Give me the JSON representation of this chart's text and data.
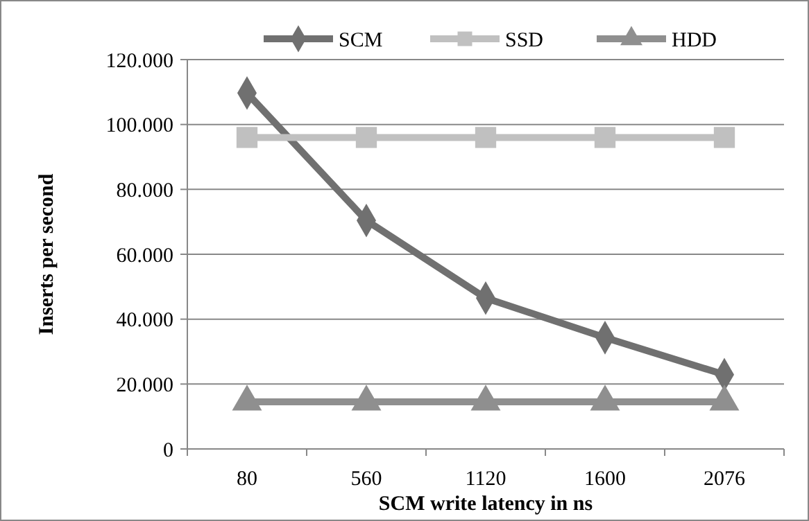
{
  "chart_data": {
    "type": "line",
    "xlabel": "SCM write latency in ns",
    "ylabel": "Inserts per second",
    "categories": [
      "80",
      "560",
      "1120",
      "1600",
      "2076"
    ],
    "series": [
      {
        "name": "SCM",
        "color": "#707070",
        "values": [
          109700,
          70400,
          46500,
          34300,
          22900
        ],
        "marker": "diamond"
      },
      {
        "name": "SSD",
        "color": "#c0c0c0",
        "values": [
          96000,
          96000,
          96000,
          96000,
          96000
        ],
        "marker": "square"
      },
      {
        "name": "HDD",
        "color": "#8f8f8f",
        "values": [
          14500,
          14500,
          14500,
          14500,
          14500
        ],
        "marker": "triangle"
      }
    ],
    "ylim": [
      0,
      120000
    ],
    "yticks": [
      0,
      {
        "value": 20000,
        "label": "20.000"
      },
      {
        "value": 40000,
        "label": "40.000"
      },
      {
        "value": 60000,
        "label": "60.000"
      },
      {
        "value": 80000,
        "label": "80.000"
      },
      {
        "value": 100000,
        "label": "100.000"
      },
      {
        "value": 120000,
        "label": "120.000"
      }
    ],
    "grid": "y",
    "legend": "top",
    "line_style": "solid"
  }
}
